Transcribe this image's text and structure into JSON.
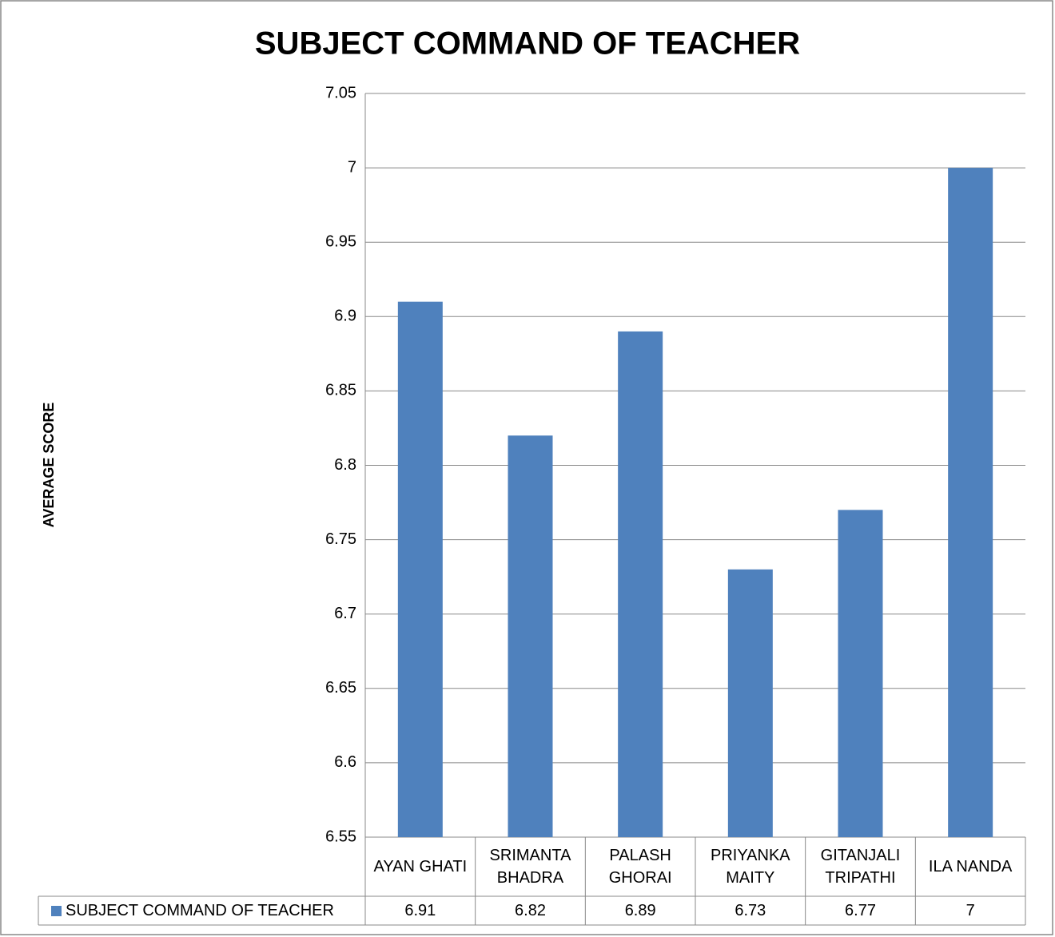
{
  "chart_data": {
    "type": "bar",
    "title": "SUBJECT COMMAND OF TEACHER",
    "y_label": "AVERAGE SCORE",
    "categories": [
      "AYAN GHATI",
      "SRIMANTA BHADRA",
      "PALASH GHORAI",
      "PRIYANKA MAITY",
      "GITANJALI TRIPATHI",
      "ILA NANDA"
    ],
    "series": [
      {
        "name": "SUBJECT COMMAND OF TEACHER",
        "color": "#4f81bd",
        "values": [
          6.91,
          6.82,
          6.89,
          6.73,
          6.77,
          7
        ]
      }
    ],
    "ylim": [
      6.55,
      7.05
    ],
    "yticks": [
      6.55,
      6.6,
      6.65,
      6.7,
      6.75,
      6.8,
      6.85,
      6.9,
      6.95,
      7,
      7.05
    ],
    "grid": true
  }
}
